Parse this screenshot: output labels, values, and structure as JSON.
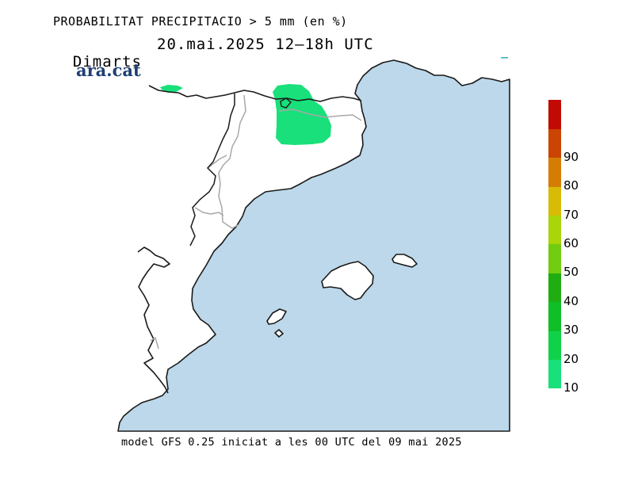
{
  "header": {
    "title": "PROBABILITAT PRECIPITACIO > 5 mm (en %)",
    "day": "Dimarts",
    "date": "20.mai.2025 12–18h UTC"
  },
  "logo": "ara.cat",
  "footer": "model GFS 0.25 iniciat a les 00 UTC del 09 mai 2025",
  "colors": {
    "sea": "#bcd8ea",
    "land": "#ffffff",
    "coast": "#1a1a1a",
    "border": "#a8a8a8"
  },
  "legend": {
    "bins": [
      {
        "label": "10",
        "color": "#19e07a"
      },
      {
        "label": "20",
        "color": "#0fd24a"
      },
      {
        "label": "30",
        "color": "#10bf28"
      },
      {
        "label": "40",
        "color": "#1fad12"
      },
      {
        "label": "50",
        "color": "#72cc10"
      },
      {
        "label": "60",
        "color": "#a9d50a"
      },
      {
        "label": "70",
        "color": "#d8bb06"
      },
      {
        "label": "80",
        "color": "#d57c04"
      },
      {
        "label": "90",
        "color": "#cb4402"
      },
      {
        "label": "",
        "color": "#c20a04"
      }
    ]
  },
  "precip_areas": [
    {
      "name": "pyrenees-west",
      "probability_bin": "10",
      "color": "#19e07a"
    },
    {
      "name": "pyrenees-east",
      "probability_bin": "10",
      "color": "#19e07a"
    }
  ]
}
